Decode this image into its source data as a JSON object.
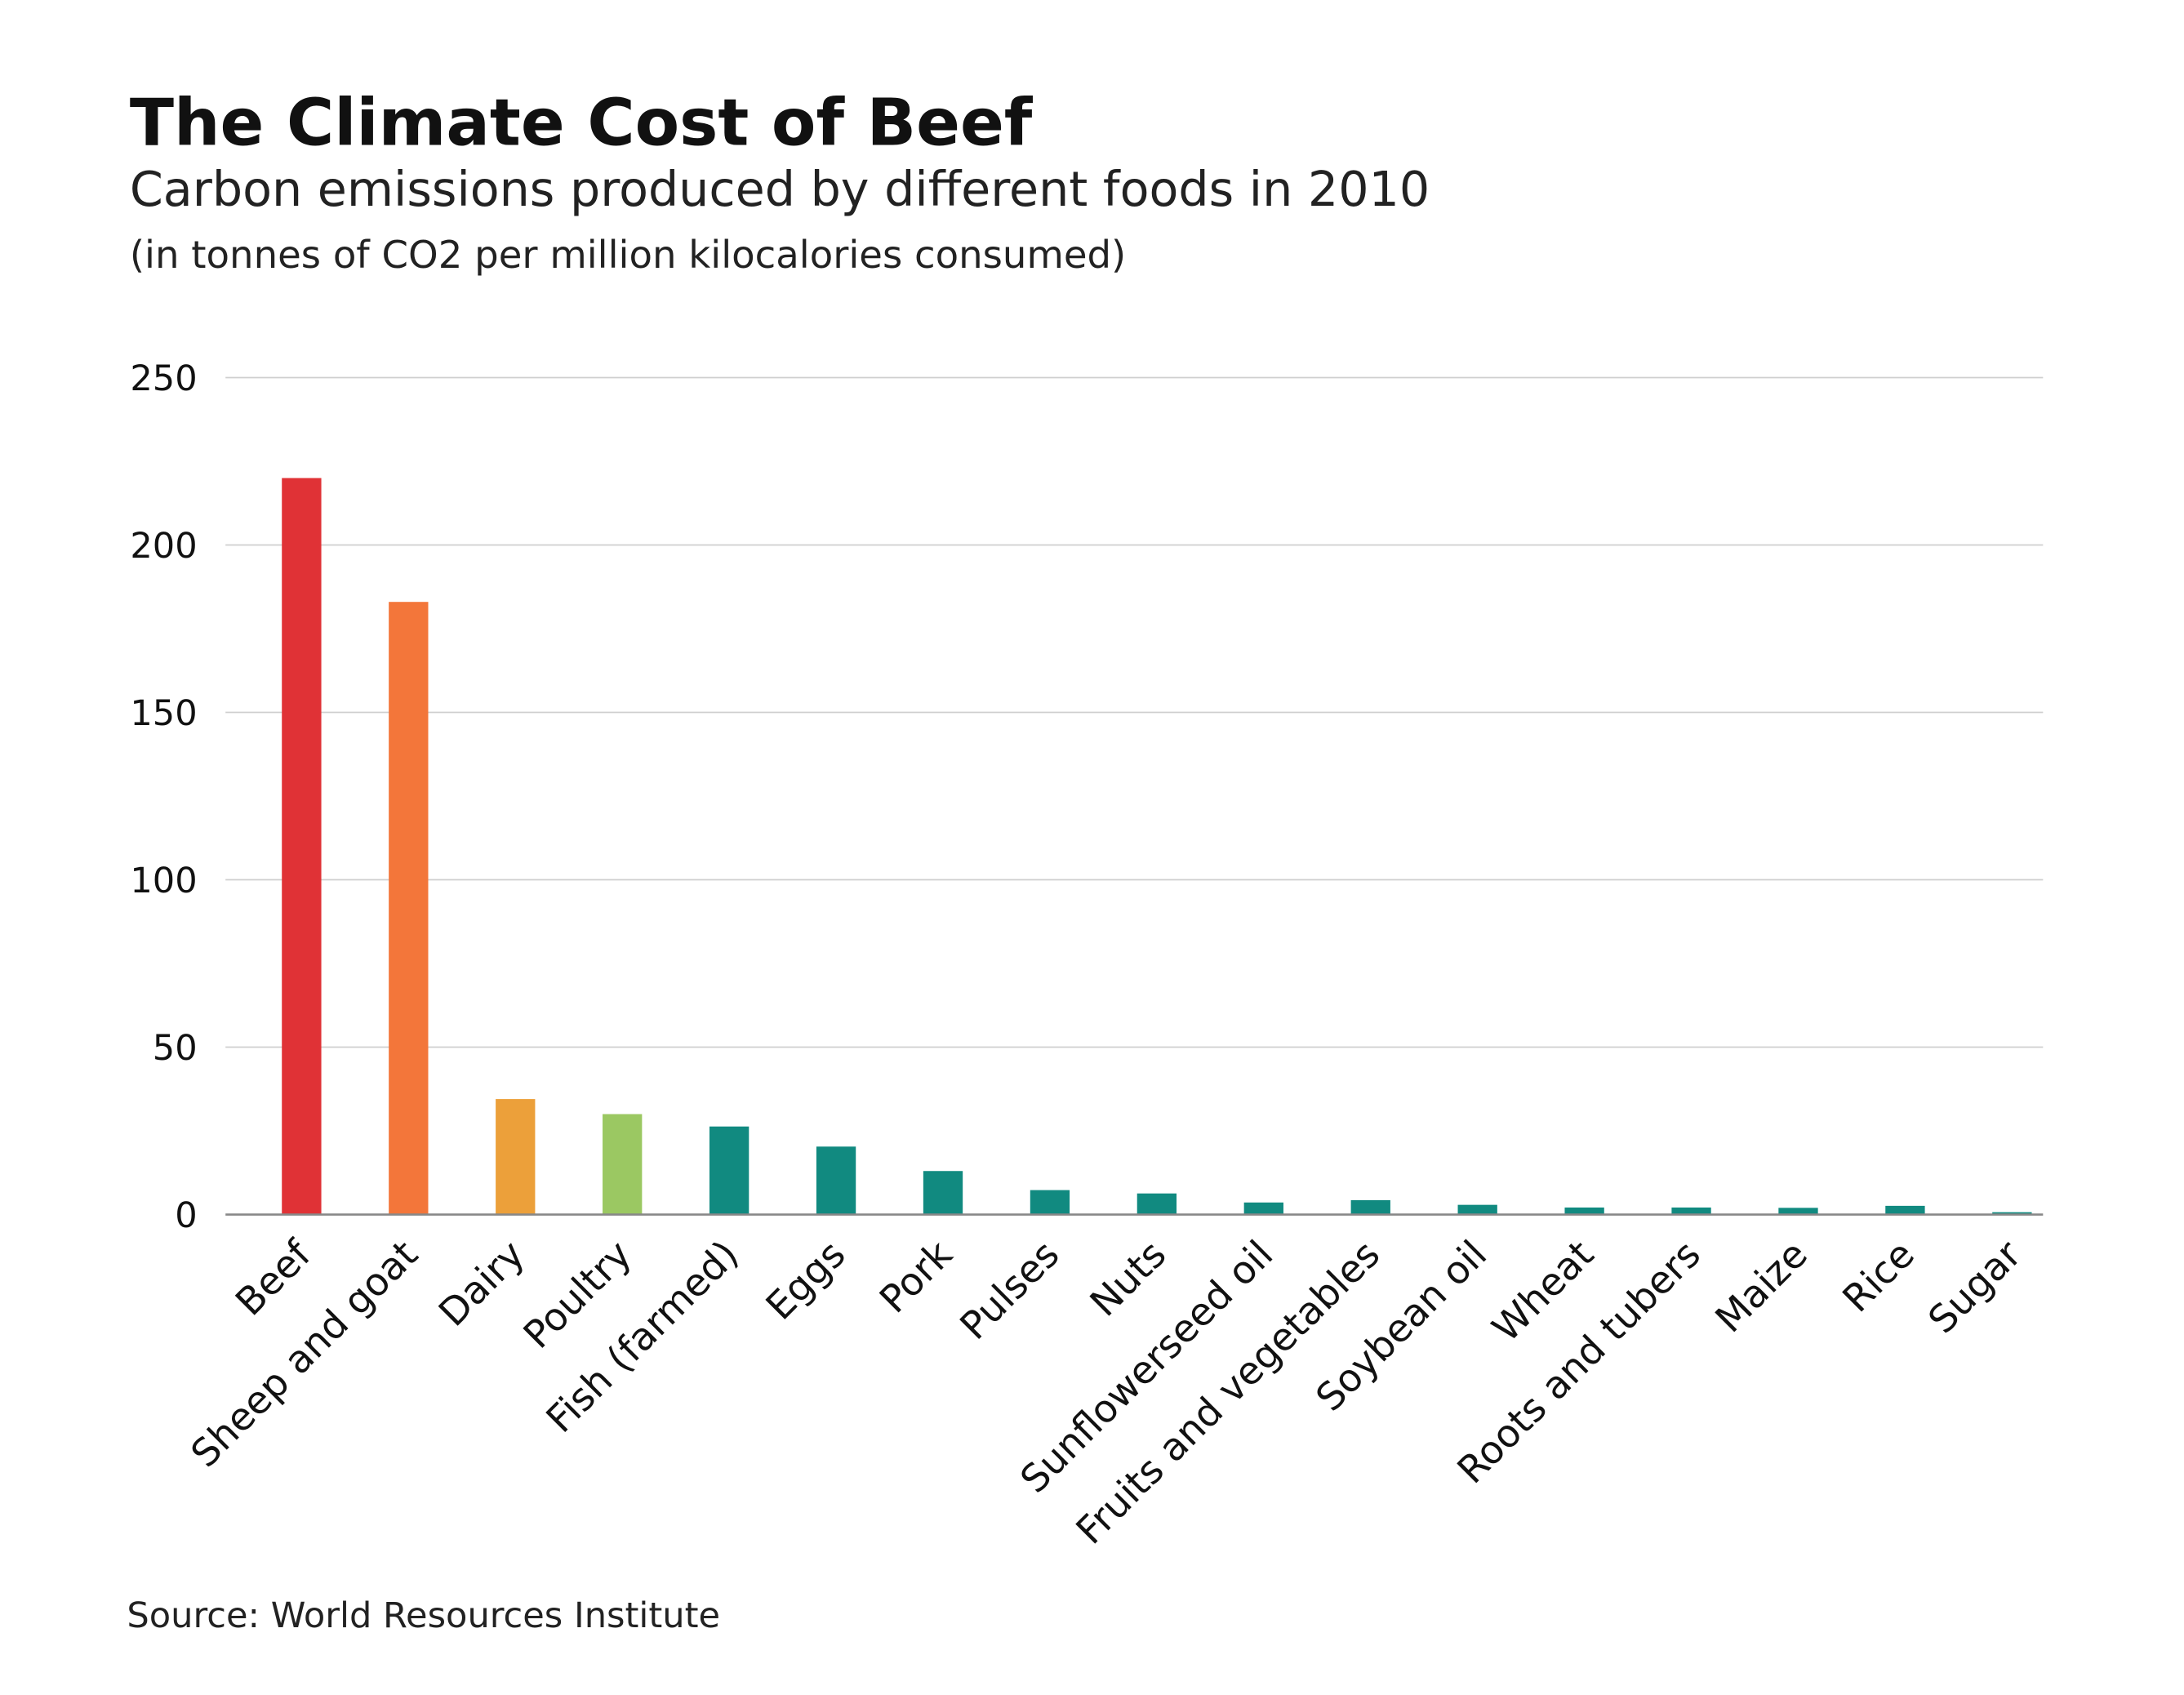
{
  "title": "The Climate Cost of Beef",
  "subtitle": "Carbon emissions produced by different foods in 2010",
  "unit_note": "(in tonnes of CO2 per million kilocalories consumed)",
  "source": "Source: World Resources Institute",
  "chart_data": {
    "type": "bar",
    "title": "The Climate Cost of Beef",
    "subtitle": "Carbon emissions produced by different foods in 2010",
    "ylabel": "",
    "xlabel": "",
    "ylim": [
      0,
      250
    ],
    "yticks": [
      0,
      50,
      100,
      150,
      200,
      250
    ],
    "grid": true,
    "categories": [
      "Beef",
      "Sheep and goat",
      "Dairy",
      "Poultry",
      "Fish (farmed)",
      "Eggs",
      "Pork",
      "Pulses",
      "Nuts",
      "Sunflowerseed oil",
      "Fruits and vegetables",
      "Soybean oil",
      "Wheat",
      "Roots and tubers",
      "Maize",
      "Rice",
      "Sugar"
    ],
    "values": [
      220,
      183,
      34.5,
      30,
      26.3,
      20.3,
      13,
      7.3,
      6.3,
      3.6,
      4.3,
      2.9,
      2.1,
      2.1,
      2.0,
      2.6,
      0.7
    ],
    "colors": [
      "#e03236",
      "#f3763a",
      "#eca03a",
      "#9bc862",
      "#118a80",
      "#118a80",
      "#118a80",
      "#118a80",
      "#118a80",
      "#118a80",
      "#118a80",
      "#118a80",
      "#118a80",
      "#118a80",
      "#118a80",
      "#118a80",
      "#118a80"
    ]
  }
}
